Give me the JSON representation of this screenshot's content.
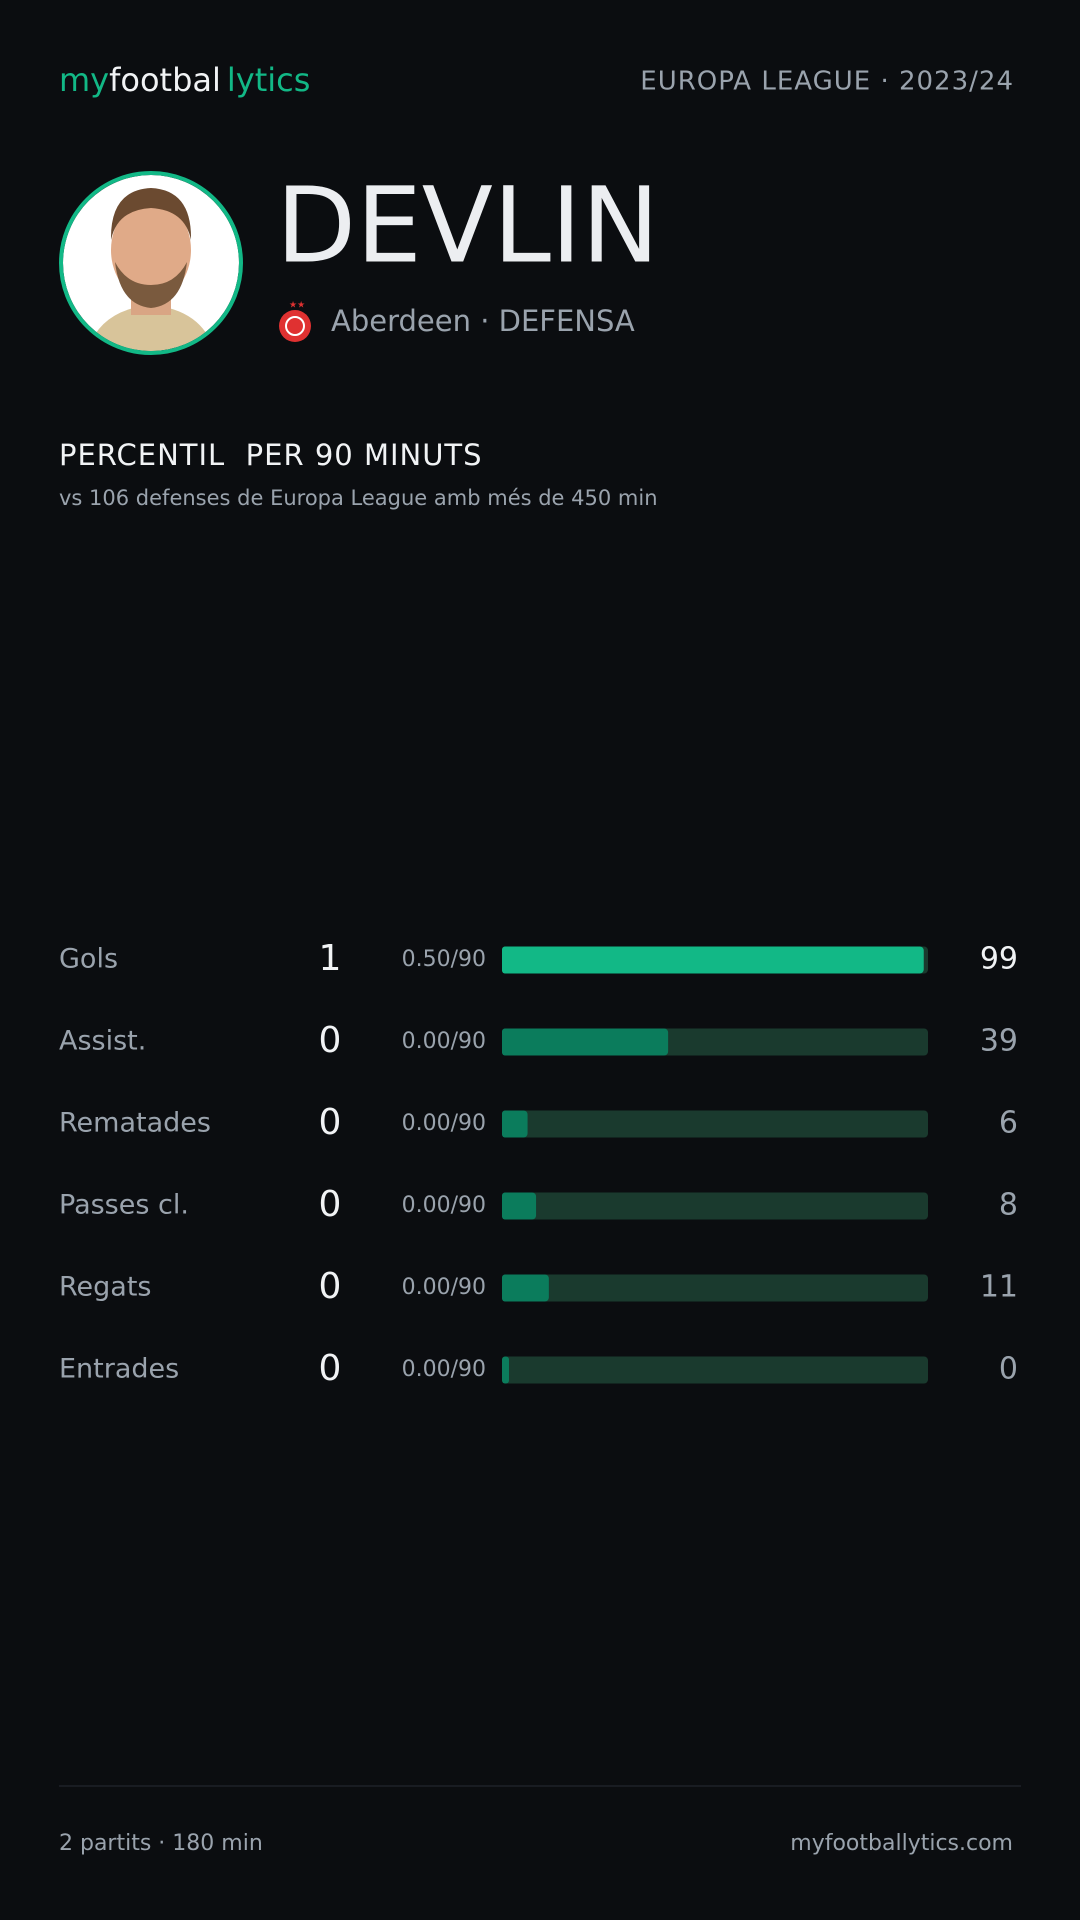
{
  "header": {
    "logo": [
      "my",
      "footbal",
      "lytics"
    ],
    "competition": "EUROPA LEAGUE · 2023/24"
  },
  "player": {
    "name": "DEVLIN",
    "club_line": "Aberdeen · DEFENSA"
  },
  "section": {
    "title": "PERCENTIL  PER 90 MINUTS",
    "subtitle": "vs 106 defenses de Europa League amb més de 450 min"
  },
  "stats": [
    {
      "label": "Gols",
      "count": "1",
      "per90": "0.50/90",
      "percentile": 99,
      "color": "#12b886"
    },
    {
      "label": "Assist.",
      "count": "0",
      "per90": "0.00/90",
      "percentile": 39,
      "color": "#0b7c5c"
    },
    {
      "label": "Rematades",
      "count": "0",
      "per90": "0.00/90",
      "percentile": 6,
      "color": "#0b7c5c"
    },
    {
      "label": "Passes cl.",
      "count": "0",
      "per90": "0.00/90",
      "percentile": 8,
      "color": "#0b7c5c"
    },
    {
      "label": "Regats",
      "count": "0",
      "per90": "0.00/90",
      "percentile": 11,
      "color": "#0b7c5c"
    },
    {
      "label": "Entrades",
      "count": "0",
      "per90": "0.00/90",
      "percentile": 0,
      "color": "#0b7c5c"
    }
  ],
  "footer": {
    "left": "2 partits · 180 min",
    "right": "myfootballytics.com"
  }
}
